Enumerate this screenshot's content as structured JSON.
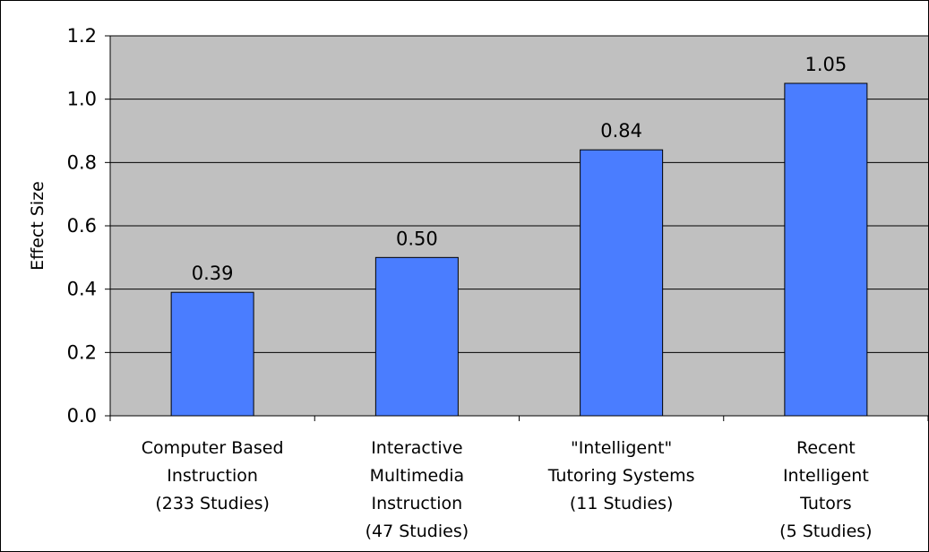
{
  "chart_data": {
    "type": "bar",
    "title": "",
    "xlabel": "",
    "ylabel": "Effect Size",
    "ylim": [
      0,
      1.2
    ],
    "yticks": [
      "0.0",
      "0.2",
      "0.4",
      "0.6",
      "0.8",
      "1.0",
      "1.2"
    ],
    "ytick_values": [
      0,
      0.2,
      0.4,
      0.6,
      0.8,
      1.0,
      1.2
    ],
    "grid": true,
    "legend": "none",
    "categories": [
      [
        "Computer Based",
        "Instruction",
        "(233 Studies)"
      ],
      [
        "Interactive",
        "Multimedia",
        "Instruction",
        "(47 Studies)"
      ],
      [
        "\"Intelligent\"",
        "Tutoring Systems",
        "(11 Studies)"
      ],
      [
        "Recent",
        "Intelligent",
        "Tutors",
        "(5 Studies)"
      ]
    ],
    "values": [
      0.39,
      0.5,
      0.84,
      1.05
    ],
    "value_labels": [
      "0.39",
      "0.50",
      "0.84",
      "1.05"
    ],
    "colors": {
      "bar": "#4a7dff",
      "plot_bg": "#c0c0c0",
      "gridline": "#000000"
    }
  }
}
